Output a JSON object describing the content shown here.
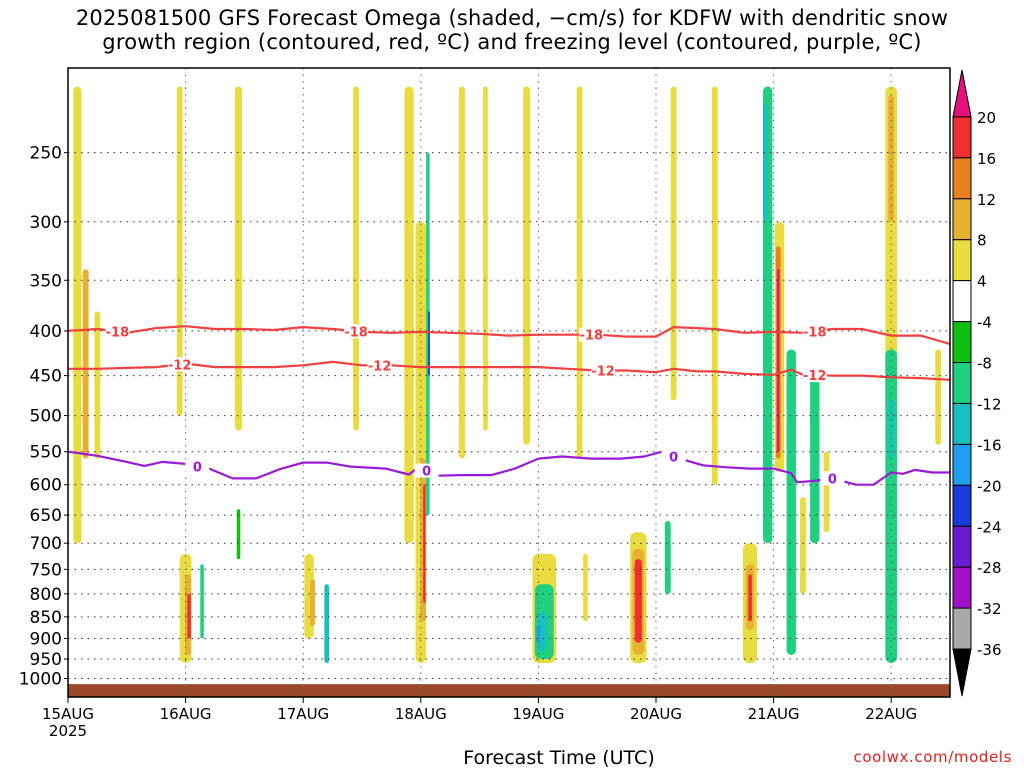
{
  "title": {
    "line1": "2025081500 GFS Forecast Omega (shaded, −cm/s) for KDFW with dendritic snow",
    "line2": "growth region (contoured, red, ºC) and freezing level (contoured, purple, ºC)"
  },
  "credit": "coolwx.com/models",
  "chart_data": {
    "type": "heatmap",
    "title": "2025081500 GFS Forecast Omega (shaded, −cm/s) for KDFW with dendritic snow growth region (contoured, red, ºC) and freezing level (contoured, purple, ºC)",
    "xlabel": "Forecast Time (UTC)",
    "ylabel": "",
    "x_range_days": [
      0,
      7.5
    ],
    "x_ticks": [
      {
        "day": 0,
        "label": "15AUG",
        "sublabel": "2025"
      },
      {
        "day": 1,
        "label": "16AUG"
      },
      {
        "day": 2,
        "label": "17AUG"
      },
      {
        "day": 3,
        "label": "18AUG"
      },
      {
        "day": 4,
        "label": "19AUG"
      },
      {
        "day": 5,
        "label": "20AUG"
      },
      {
        "day": 6,
        "label": "21AUG"
      },
      {
        "day": 7,
        "label": "22AUG"
      }
    ],
    "y_scale": "log-pressure (hPa, decreasing upward)",
    "y_range": [
      1050,
      200
    ],
    "y_ticks": [
      1000,
      950,
      900,
      850,
      800,
      750,
      700,
      650,
      600,
      550,
      500,
      450,
      400,
      350,
      300,
      250
    ],
    "grid": true,
    "ground_color": "#9a4a2a",
    "ground_top_hpa": 1015,
    "colorbar": {
      "levels": [
        -36,
        -32,
        -28,
        -24,
        -20,
        -16,
        -12,
        -8,
        -4,
        4,
        8,
        12,
        16,
        20
      ],
      "colors": [
        "#000000",
        "#a8a8a8",
        "#a010c8",
        "#6a1ad0",
        "#1a3be0",
        "#1f9ef0",
        "#18c0c0",
        "#20d080",
        "#10c010",
        "#ffffff",
        "#e8dc40",
        "#e8b030",
        "#e88020",
        "#f03030",
        "#e8107a"
      ]
    },
    "omega_cells": [
      {
        "day": 0.08,
        "width": 0.07,
        "p_top": 210,
        "p_bot": 700,
        "value": 6
      },
      {
        "day": 0.15,
        "width": 0.05,
        "p_top": 340,
        "p_bot": 560,
        "value": 10
      },
      {
        "day": 0.25,
        "width": 0.05,
        "p_top": 380,
        "p_bot": 560,
        "value": 6
      },
      {
        "day": 0.95,
        "width": 0.05,
        "p_top": 210,
        "p_bot": 500,
        "value": 6
      },
      {
        "day": 1.0,
        "width": 0.1,
        "p_top": 720,
        "p_bot": 960,
        "value": 6
      },
      {
        "day": 1.02,
        "width": 0.05,
        "p_top": 760,
        "p_bot": 940,
        "value": 12
      },
      {
        "day": 1.03,
        "width": 0.03,
        "p_top": 800,
        "p_bot": 900,
        "value": 20
      },
      {
        "day": 1.14,
        "width": 0.03,
        "p_top": 740,
        "p_bot": 900,
        "value": -8
      },
      {
        "day": 1.45,
        "width": 0.06,
        "p_top": 210,
        "p_bot": 520,
        "value": 6
      },
      {
        "day": 1.45,
        "width": 0.03,
        "p_top": 640,
        "p_bot": 730,
        "value": -6
      },
      {
        "day": 2.05,
        "width": 0.08,
        "p_top": 720,
        "p_bot": 900,
        "value": 6
      },
      {
        "day": 2.08,
        "width": 0.04,
        "p_top": 770,
        "p_bot": 870,
        "value": 12
      },
      {
        "day": 2.2,
        "width": 0.04,
        "p_top": 780,
        "p_bot": 960,
        "value": -12
      },
      {
        "day": 2.45,
        "width": 0.05,
        "p_top": 210,
        "p_bot": 520,
        "value": 6
      },
      {
        "day": 2.9,
        "width": 0.08,
        "p_top": 210,
        "p_bot": 700,
        "value": 6
      },
      {
        "day": 3.0,
        "width": 0.09,
        "p_top": 300,
        "p_bot": 960,
        "value": 6
      },
      {
        "day": 3.02,
        "width": 0.05,
        "p_top": 560,
        "p_bot": 860,
        "value": 12
      },
      {
        "day": 3.03,
        "width": 0.02,
        "p_top": 600,
        "p_bot": 820,
        "value": 20
      },
      {
        "day": 3.06,
        "width": 0.03,
        "p_top": 250,
        "p_bot": 650,
        "value": -10
      },
      {
        "day": 3.07,
        "width": 0.015,
        "p_top": 380,
        "p_bot": 450,
        "value": -22
      },
      {
        "day": 3.35,
        "width": 0.05,
        "p_top": 210,
        "p_bot": 560,
        "value": 6
      },
      {
        "day": 3.55,
        "width": 0.04,
        "p_top": 210,
        "p_bot": 520,
        "value": 6
      },
      {
        "day": 3.9,
        "width": 0.06,
        "p_top": 210,
        "p_bot": 540,
        "value": 6
      },
      {
        "day": 4.05,
        "width": 0.2,
        "p_top": 720,
        "p_bot": 960,
        "value": 6
      },
      {
        "day": 4.05,
        "width": 0.16,
        "p_top": 780,
        "p_bot": 950,
        "value": -8
      },
      {
        "day": 4.03,
        "width": 0.08,
        "p_top": 840,
        "p_bot": 930,
        "value": -14
      },
      {
        "day": 4.0,
        "width": 0.03,
        "p_top": 870,
        "p_bot": 910,
        "value": -18
      },
      {
        "day": 4.35,
        "width": 0.05,
        "p_top": 210,
        "p_bot": 560,
        "value": 6
      },
      {
        "day": 4.4,
        "width": 0.04,
        "p_top": 720,
        "p_bot": 860,
        "value": 6
      },
      {
        "day": 4.85,
        "width": 0.14,
        "p_top": 680,
        "p_bot": 960,
        "value": 6
      },
      {
        "day": 4.85,
        "width": 0.1,
        "p_top": 710,
        "p_bot": 940,
        "value": 12
      },
      {
        "day": 4.85,
        "width": 0.06,
        "p_top": 730,
        "p_bot": 910,
        "value": 20
      },
      {
        "day": 5.1,
        "width": 0.05,
        "p_top": 660,
        "p_bot": 800,
        "value": -8
      },
      {
        "day": 5.15,
        "width": 0.05,
        "p_top": 210,
        "p_bot": 480,
        "value": 6
      },
      {
        "day": 5.5,
        "width": 0.05,
        "p_top": 210,
        "p_bot": 600,
        "value": 6
      },
      {
        "day": 5.8,
        "width": 0.12,
        "p_top": 700,
        "p_bot": 960,
        "value": 6
      },
      {
        "day": 5.8,
        "width": 0.07,
        "p_top": 740,
        "p_bot": 880,
        "value": 12
      },
      {
        "day": 5.8,
        "width": 0.03,
        "p_top": 760,
        "p_bot": 860,
        "value": 20
      },
      {
        "day": 5.95,
        "width": 0.08,
        "p_top": 210,
        "p_bot": 700,
        "value": -8
      },
      {
        "day": 5.93,
        "width": 0.04,
        "p_top": 220,
        "p_bot": 300,
        "value": -14
      },
      {
        "day": 6.05,
        "width": 0.08,
        "p_top": 300,
        "p_bot": 580,
        "value": 8
      },
      {
        "day": 6.04,
        "width": 0.04,
        "p_top": 320,
        "p_bot": 560,
        "value": 16
      },
      {
        "day": 6.04,
        "width": 0.02,
        "p_top": 340,
        "p_bot": 550,
        "value": 22
      },
      {
        "day": 6.15,
        "width": 0.08,
        "p_top": 420,
        "p_bot": 940,
        "value": -8
      },
      {
        "day": 6.35,
        "width": 0.08,
        "p_top": 450,
        "p_bot": 700,
        "value": -8
      },
      {
        "day": 6.25,
        "width": 0.05,
        "p_top": 620,
        "p_bot": 800,
        "value": 6
      },
      {
        "day": 6.45,
        "width": 0.05,
        "p_top": 550,
        "p_bot": 680,
        "value": 6
      },
      {
        "day": 7.0,
        "width": 0.1,
        "p_top": 210,
        "p_bot": 500,
        "value": 6
      },
      {
        "day": 7.0,
        "width": 0.05,
        "p_top": 215,
        "p_bot": 300,
        "value": 10
      },
      {
        "day": 7.0,
        "width": 0.1,
        "p_top": 420,
        "p_bot": 960,
        "value": -8
      },
      {
        "day": 7.0,
        "width": 0.04,
        "p_top": 480,
        "p_bot": 560,
        "value": -12
      },
      {
        "day": 7.4,
        "width": 0.05,
        "p_top": 420,
        "p_bot": 540,
        "value": 6
      }
    ],
    "contours": [
      {
        "name": "-18",
        "color": "#f04040",
        "label_at_days": [
          0.42,
          2.45,
          4.45,
          6.35
        ],
        "points": [
          [
            0,
            400
          ],
          [
            0.25,
            398
          ],
          [
            0.5,
            402
          ],
          [
            0.75,
            397
          ],
          [
            1.0,
            395
          ],
          [
            1.25,
            398
          ],
          [
            1.5,
            398
          ],
          [
            1.75,
            399
          ],
          [
            2.0,
            396
          ],
          [
            2.25,
            398
          ],
          [
            2.5,
            401
          ],
          [
            2.75,
            402
          ],
          [
            3.0,
            401
          ],
          [
            3.25,
            402
          ],
          [
            3.5,
            403
          ],
          [
            3.75,
            405
          ],
          [
            4.0,
            404
          ],
          [
            4.25,
            404
          ],
          [
            4.5,
            404
          ],
          [
            4.75,
            406
          ],
          [
            5.0,
            406
          ],
          [
            5.15,
            396
          ],
          [
            5.35,
            397
          ],
          [
            5.5,
            398
          ],
          [
            5.75,
            402
          ],
          [
            6.0,
            401
          ],
          [
            6.25,
            402
          ],
          [
            6.5,
            398
          ],
          [
            6.75,
            398
          ],
          [
            7.0,
            405
          ],
          [
            7.25,
            405
          ],
          [
            7.5,
            414
          ]
        ]
      },
      {
        "name": "-12",
        "color": "#f04040",
        "label_at_days": [
          0.95,
          2.65,
          4.55,
          6.35
        ],
        "points": [
          [
            0,
            442
          ],
          [
            0.25,
            442
          ],
          [
            0.5,
            441
          ],
          [
            0.75,
            440
          ],
          [
            1.0,
            436
          ],
          [
            1.25,
            440
          ],
          [
            1.5,
            440
          ],
          [
            1.75,
            440
          ],
          [
            2.0,
            438
          ],
          [
            2.25,
            434
          ],
          [
            2.5,
            438
          ],
          [
            2.75,
            438
          ],
          [
            3.0,
            440
          ],
          [
            3.25,
            440
          ],
          [
            3.5,
            440
          ],
          [
            3.75,
            440
          ],
          [
            4.0,
            440
          ],
          [
            4.25,
            442
          ],
          [
            4.5,
            444
          ],
          [
            4.75,
            444
          ],
          [
            5.0,
            446
          ],
          [
            5.15,
            442
          ],
          [
            5.35,
            445
          ],
          [
            5.5,
            445
          ],
          [
            5.75,
            448
          ],
          [
            6.0,
            449
          ],
          [
            6.15,
            443
          ],
          [
            6.25,
            449
          ],
          [
            6.5,
            450
          ],
          [
            6.75,
            450
          ],
          [
            7.0,
            452
          ],
          [
            7.25,
            453
          ],
          [
            7.5,
            455
          ]
        ]
      },
      {
        "name": "0",
        "color": "#9a1ad8",
        "label_at_days": [
          1.1,
          3.05,
          5.15,
          6.5
        ],
        "points": [
          [
            0,
            550
          ],
          [
            0.25,
            556
          ],
          [
            0.5,
            565
          ],
          [
            0.65,
            571
          ],
          [
            0.8,
            565
          ],
          [
            1.0,
            568
          ],
          [
            1.2,
            575
          ],
          [
            1.4,
            590
          ],
          [
            1.6,
            590
          ],
          [
            1.8,
            576
          ],
          [
            2.0,
            566
          ],
          [
            2.2,
            566
          ],
          [
            2.4,
            572
          ],
          [
            2.7,
            575
          ],
          [
            2.9,
            584
          ],
          [
            3.0,
            570
          ],
          [
            3.1,
            586
          ],
          [
            3.35,
            585
          ],
          [
            3.6,
            585
          ],
          [
            3.8,
            575
          ],
          [
            4.0,
            560
          ],
          [
            4.2,
            557
          ],
          [
            4.45,
            560
          ],
          [
            4.7,
            560
          ],
          [
            4.9,
            557
          ],
          [
            5.05,
            550
          ],
          [
            5.2,
            560
          ],
          [
            5.4,
            570
          ],
          [
            5.6,
            573
          ],
          [
            5.8,
            575
          ],
          [
            6.0,
            575
          ],
          [
            6.15,
            582
          ],
          [
            6.2,
            596
          ],
          [
            6.35,
            594
          ],
          [
            6.5,
            590
          ],
          [
            6.7,
            600
          ],
          [
            6.85,
            600
          ],
          [
            7.0,
            581
          ],
          [
            7.1,
            583
          ],
          [
            7.2,
            577
          ],
          [
            7.35,
            581
          ],
          [
            7.5,
            581
          ]
        ]
      }
    ]
  }
}
